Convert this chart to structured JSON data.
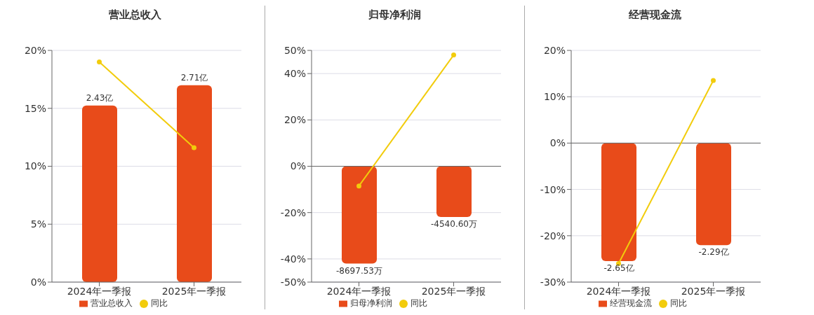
{
  "chart_data": [
    {
      "type": "bar",
      "title": "营业总收入",
      "categories": [
        "2024年一季报",
        "2025年一季报"
      ],
      "series": [
        {
          "name": "营业总收入",
          "axis": "y2",
          "color": "#e84b1a",
          "values": [
            2.43,
            2.71
          ],
          "value_labels": [
            "2.43亿",
            "2.71亿"
          ]
        },
        {
          "name": "同比",
          "type": "line",
          "color": "#f2cc0c",
          "values": [
            19,
            11.6
          ]
        }
      ],
      "ylim": [
        0,
        20
      ],
      "yticks": [
        {
          "value": 0,
          "label": "0%"
        },
        {
          "value": 5,
          "label": "5%"
        },
        {
          "value": 10,
          "label": "10%"
        },
        {
          "value": 15,
          "label": "15%"
        },
        {
          "value": 20,
          "label": "20%"
        }
      ],
      "y2lim": [
        0,
        3.19
      ],
      "grid": "y",
      "legend": "bottom",
      "marker": "circle"
    },
    {
      "type": "bar",
      "title": "归母净利润",
      "categories": [
        "2024年一季报",
        "2025年一季报"
      ],
      "series": [
        {
          "name": "归母净利润",
          "axis": "y2",
          "color": "#e84b1a",
          "values": [
            -8697.53,
            -4540.6
          ],
          "value_labels": [
            "-8697.53万",
            "-4540.60万"
          ]
        },
        {
          "name": "同比",
          "type": "line",
          "color": "#f2cc0c",
          "values": [
            -8.5,
            48
          ]
        }
      ],
      "ylim": [
        -50,
        50
      ],
      "yticks": [
        {
          "value": -50,
          "label": "-50%"
        },
        {
          "value": -40,
          "label": "-40%"
        },
        {
          "value": -20,
          "label": "-20%"
        },
        {
          "value": 0,
          "label": "0%"
        },
        {
          "value": 20,
          "label": "20%"
        },
        {
          "value": 40,
          "label": "40%"
        },
        {
          "value": 50,
          "label": "50%"
        }
      ],
      "y2lim": [
        -10350,
        10350
      ],
      "grid": "y",
      "legend": "bottom",
      "marker": "circle"
    },
    {
      "type": "bar",
      "title": "经营现金流",
      "categories": [
        "2024年一季报",
        "2025年一季报"
      ],
      "series": [
        {
          "name": "经营现金流",
          "axis": "y2",
          "color": "#e84b1a",
          "values": [
            -2.65,
            -2.29
          ],
          "value_labels": [
            "-2.65亿",
            "-2.29亿"
          ]
        },
        {
          "name": "同比",
          "type": "line",
          "color": "#f2cc0c",
          "values": [
            -26,
            13.5
          ]
        }
      ],
      "ylim": [
        -30,
        20
      ],
      "yticks": [
        {
          "value": -30,
          "label": "-30%"
        },
        {
          "value": -20,
          "label": "-20%"
        },
        {
          "value": -10,
          "label": "-10%"
        },
        {
          "value": 0,
          "label": "0%"
        },
        {
          "value": 10,
          "label": "10%"
        },
        {
          "value": 20,
          "label": "20%"
        }
      ],
      "y2lim": [
        -3.12,
        2.08
      ],
      "grid": "y",
      "legend": "bottom",
      "marker": "circle"
    }
  ]
}
